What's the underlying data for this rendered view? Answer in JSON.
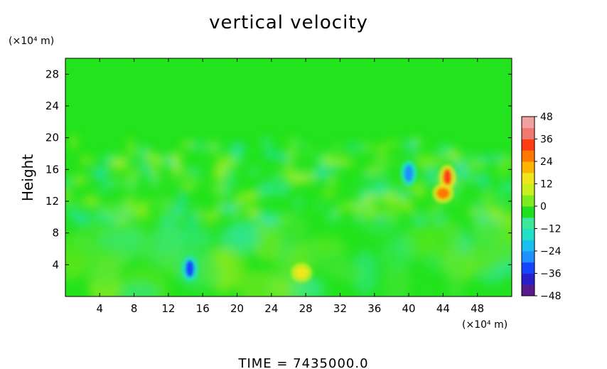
{
  "chart_data": {
    "type": "heatmap",
    "title": "vertical velocity",
    "ylabel": "Height",
    "x_unit": "(×10⁴ m)",
    "y_unit": "(×10⁴ m)",
    "xlim": [
      0,
      52
    ],
    "ylim": [
      0,
      30
    ],
    "x_ticks": [
      4,
      8,
      12,
      16,
      20,
      24,
      28,
      32,
      36,
      40,
      44,
      48
    ],
    "y_ticks": [
      4,
      8,
      12,
      16,
      20,
      24,
      28
    ],
    "colorbar": {
      "range": [
        -48,
        48
      ],
      "ticks": [
        "48",
        "36",
        "24",
        "12",
        "0",
        "−12",
        "−24",
        "−36",
        "−48"
      ],
      "tick_values": [
        48,
        36,
        24,
        12,
        0,
        -12,
        -24,
        -36,
        -48
      ],
      "colors": [
        "#5a1a8c",
        "#2a1fc8",
        "#1446ff",
        "#1e90ff",
        "#18c0f0",
        "#20e0c8",
        "#3ce89a",
        "#1ee01e",
        "#7eeb1e",
        "#c8f01e",
        "#f0e61e",
        "#ffb400",
        "#ff7800",
        "#ff3c14",
        "#f0786e",
        "#f2a0a0"
      ]
    },
    "features": [
      {
        "x": 14.5,
        "y": 3.5,
        "value": -36
      },
      {
        "x": 27.5,
        "y": 3.0,
        "value": 16
      },
      {
        "x": 40.0,
        "y": 15.5,
        "value": -30
      },
      {
        "x": 44.5,
        "y": 15.0,
        "value": 30
      },
      {
        "x": 44.0,
        "y": 13.0,
        "value": 24
      }
    ],
    "footer": "TIME  =  7435000.0"
  }
}
